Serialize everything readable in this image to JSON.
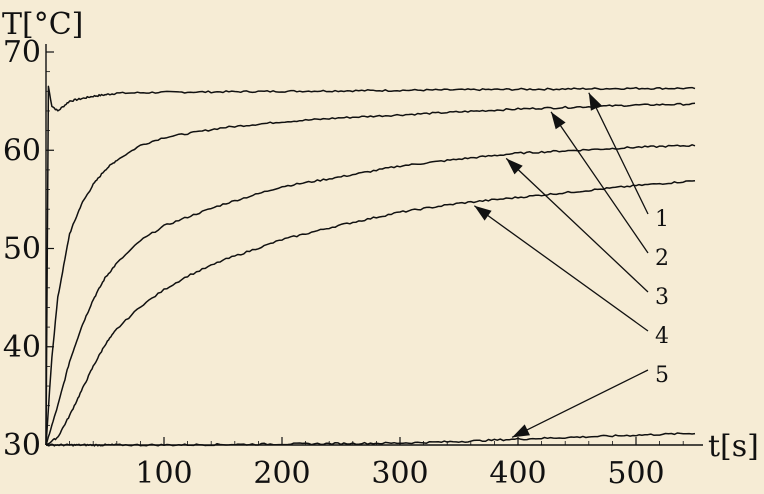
{
  "chart_data": {
    "type": "line",
    "xlabel": "t[s]",
    "ylabel": "T[°C]",
    "xlim": [
      0,
      550
    ],
    "ylim": [
      30,
      70
    ],
    "x_ticks": [
      100,
      200,
      300,
      400,
      500
    ],
    "y_ticks": [
      30,
      40,
      50,
      60,
      70
    ],
    "grid": false,
    "series": [
      {
        "name": "1",
        "x": [
          0,
          2,
          5,
          10,
          20,
          40,
          60,
          100,
          200,
          300,
          400,
          500,
          550
        ],
        "values": [
          30,
          66.5,
          64.5,
          64.0,
          65.0,
          65.5,
          65.8,
          65.9,
          66.0,
          66.1,
          66.2,
          66.3,
          66.3
        ]
      },
      {
        "name": "2",
        "x": [
          0,
          5,
          10,
          20,
          30,
          40,
          50,
          60,
          80,
          100,
          150,
          200,
          250,
          300,
          350,
          400,
          450,
          500,
          550
        ],
        "values": [
          30,
          39,
          45,
          51.5,
          54.5,
          56.5,
          58,
          59,
          60.5,
          61.3,
          62.3,
          62.9,
          63.3,
          63.6,
          63.9,
          64.2,
          64.4,
          64.6,
          64.7
        ]
      },
      {
        "name": "3",
        "x": [
          0,
          10,
          20,
          30,
          40,
          50,
          60,
          80,
          100,
          120,
          150,
          200,
          250,
          300,
          350,
          400,
          450,
          500,
          550
        ],
        "values": [
          30,
          34,
          38.5,
          42,
          44.8,
          47,
          48.5,
          50.8,
          52.3,
          53.2,
          54.5,
          56.3,
          57.3,
          58.4,
          59.1,
          59.7,
          60.0,
          60.3,
          60.5
        ]
      },
      {
        "name": "4",
        "x": [
          0,
          10,
          20,
          30,
          40,
          50,
          60,
          80,
          100,
          120,
          150,
          200,
          250,
          300,
          350,
          400,
          450,
          500,
          550
        ],
        "values": [
          30,
          30.8,
          33,
          35.5,
          38,
          40.2,
          41.8,
          44.1,
          45.8,
          47.2,
          48.8,
          50.9,
          52.4,
          53.7,
          54.6,
          55.2,
          55.8,
          56.4,
          56.9
        ]
      },
      {
        "name": "5",
        "x": [
          0,
          100,
          200,
          300,
          350,
          400,
          450,
          500,
          550
        ],
        "values": [
          30,
          30.0,
          30.1,
          30.2,
          30.35,
          30.6,
          30.8,
          31.0,
          31.2
        ]
      }
    ],
    "annotations": [
      {
        "label": "1",
        "target_series": "1",
        "target_x": 460
      },
      {
        "label": "2",
        "target_series": "2",
        "target_x": 428
      },
      {
        "label": "3",
        "target_series": "3",
        "target_x": 390
      },
      {
        "label": "4",
        "target_series": "4",
        "target_x": 363
      },
      {
        "label": "5",
        "target_series": "5",
        "target_x": 395
      }
    ]
  }
}
